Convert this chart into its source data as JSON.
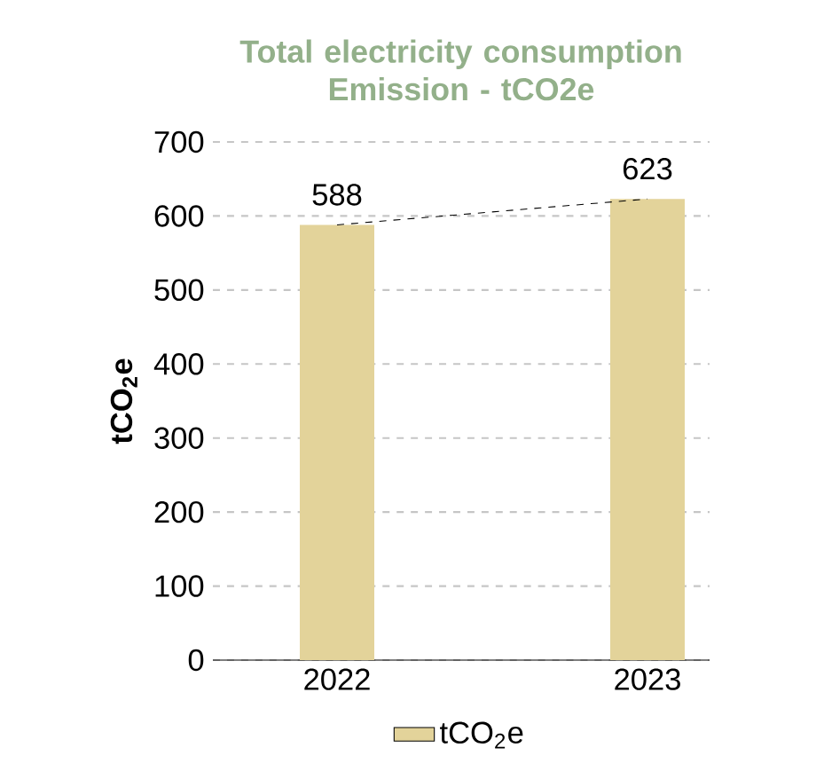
{
  "chart_data": {
    "type": "bar",
    "title": "Total electricity consumption Emission - tCO2e",
    "ylabel": "**tCO$_{2}$e**",
    "categories": [
      "2022",
      "2023"
    ],
    "series": [
      {
        "name": "tCO$_{2}$e",
        "color": "#e3d39a",
        "values": [
          588,
          623
        ],
        "value_labels": [
          "588",
          "623"
        ]
      },
      {
        "type": "line",
        "color": "#000000",
        "line_style": "dashed",
        "values": [
          588,
          623
        ]
      }
    ],
    "ylim": [
      0,
      700
    ],
    "yticks": [
      0,
      100,
      200,
      300,
      400,
      500,
      600,
      700
    ],
    "grid": "y",
    "legend": "bottom"
  }
}
